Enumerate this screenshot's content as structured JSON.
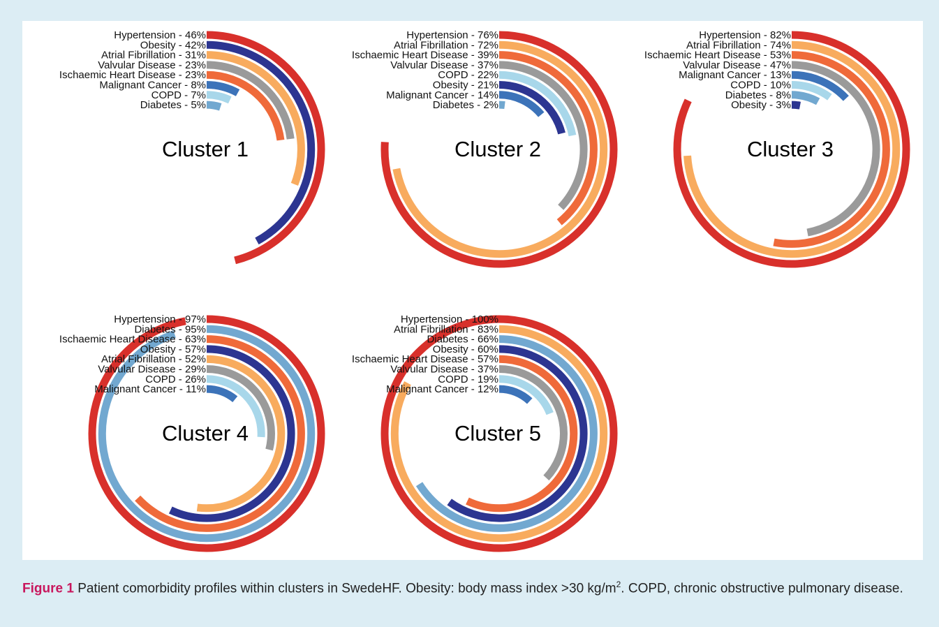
{
  "chart_data": [
    {
      "type": "radial_bar",
      "title": "Cluster 1",
      "categories": [
        "Hypertension - 46%",
        "Obesity - 42%",
        "Atrial Fibrillation - 31%",
        "Valvular Disease - 23%",
        "Ischaemic Heart Disease - 23%",
        "Malignant Cancer - 8%",
        "COPD - 7%",
        "Diabetes - 5%"
      ],
      "values": [
        46,
        42,
        31,
        23,
        23,
        8,
        7,
        5
      ],
      "colors": [
        "#d8302b",
        "#2c3591",
        "#f8ab5e",
        "#9a9a9a",
        "#ef6a3a",
        "#3c73b9",
        "#a8d7ea",
        "#72a8d0"
      ]
    },
    {
      "type": "radial_bar",
      "title": "Cluster 2",
      "categories": [
        "Hypertension - 76%",
        "Atrial Fibrillation - 72%",
        "Ischaemic Heart Disease - 39%",
        "Valvular Disease - 37%",
        "COPD - 22%",
        "Obesity - 21%",
        "Malignant Cancer - 14%",
        "Diabetes - 2%"
      ],
      "values": [
        76,
        72,
        39,
        37,
        22,
        21,
        14,
        2
      ],
      "colors": [
        "#d8302b",
        "#f8ab5e",
        "#ef6a3a",
        "#9a9a9a",
        "#a8d7ea",
        "#2c3591",
        "#3c73b9",
        "#72a8d0"
      ]
    },
    {
      "type": "radial_bar",
      "title": "Cluster 3",
      "categories": [
        "Hypertension - 82%",
        "Atrial Fibrillation - 74%",
        "Ischaemic Heart Disease - 53%",
        "Valvular Disease - 47%",
        "Malignant Cancer - 13%",
        "COPD - 10%",
        "Diabetes - 8%",
        "Obesity - 3%"
      ],
      "values": [
        82,
        74,
        53,
        47,
        13,
        10,
        8,
        3
      ],
      "colors": [
        "#d8302b",
        "#f8ab5e",
        "#ef6a3a",
        "#9a9a9a",
        "#3c73b9",
        "#a8d7ea",
        "#72a8d0",
        "#2c3591"
      ]
    },
    {
      "type": "radial_bar",
      "title": "Cluster 4",
      "categories": [
        "Hypertension - 97%",
        "Diabetes - 95%",
        "Ischaemic Heart Disease - 63%",
        "Obesity - 57%",
        "Atrial Fibrillation - 52%",
        "Valvular Disease - 29%",
        "COPD - 26%",
        "Malignant Cancer - 11%"
      ],
      "values": [
        97,
        95,
        63,
        57,
        52,
        29,
        26,
        11
      ],
      "colors": [
        "#d8302b",
        "#72a8d0",
        "#ef6a3a",
        "#2c3591",
        "#f8ab5e",
        "#9a9a9a",
        "#a8d7ea",
        "#3c73b9"
      ]
    },
    {
      "type": "radial_bar",
      "title": "Cluster 5",
      "categories": [
        "Hypertension - 100%",
        "Atrial Fibrillation - 83%",
        "Diabetes - 66%",
        "Obesity - 60%",
        "Ischaemic Heart Disease - 57%",
        "Valvular Disease - 37%",
        "COPD - 19%",
        "Malignant Cancer - 12%"
      ],
      "values": [
        100,
        83,
        66,
        60,
        57,
        37,
        19,
        12
      ],
      "colors": [
        "#d8302b",
        "#f8ab5e",
        "#72a8d0",
        "#2c3591",
        "#ef6a3a",
        "#9a9a9a",
        "#a8d7ea",
        "#3c73b9"
      ]
    }
  ],
  "caption": {
    "label": "Figure 1",
    "text": "Patient comorbidity profiles within clusters in SwedeHF. Obesity: body mass index >30 kg/m",
    "superscript": "2",
    "text_after": ". COPD, chronic obstructive pulmonary disease."
  }
}
